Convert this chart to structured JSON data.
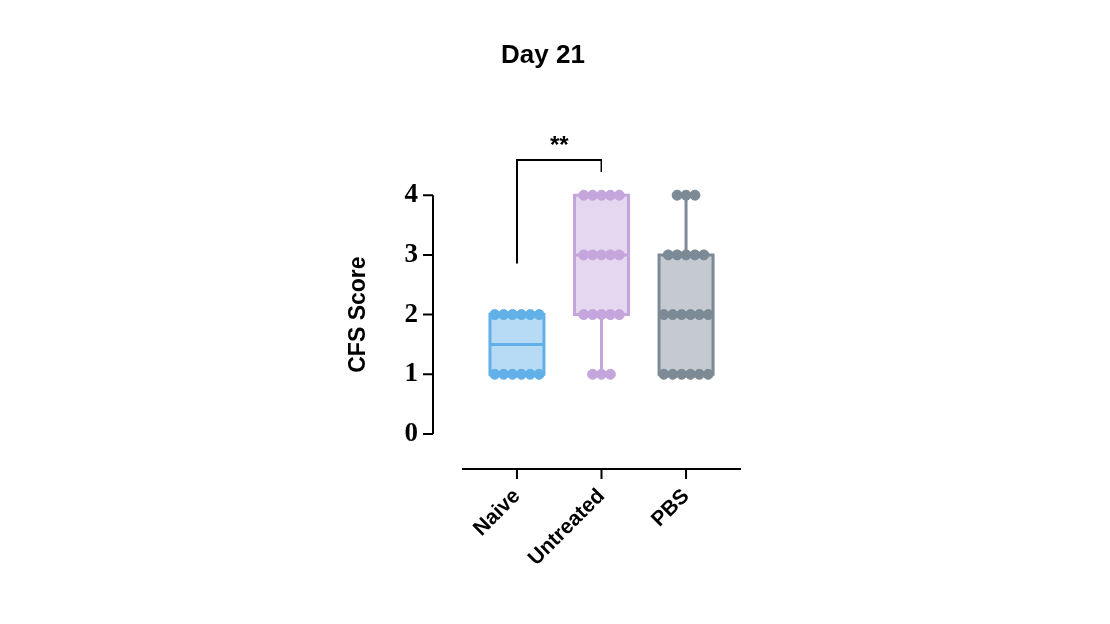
{
  "chart_data": {
    "type": "box",
    "title": "Day 21",
    "ylabel": "CFS Score",
    "categories": [
      "Naive",
      "Untreated",
      "PBS"
    ],
    "colors": [
      "#62b0e8",
      "#c4a6dc",
      "#7c8a96"
    ],
    "boxes": [
      {
        "low": 1,
        "q1": 1,
        "median": 1.5,
        "q3": 2,
        "high": 2
      },
      {
        "low": 1,
        "q1": 2,
        "median": 3,
        "q3": 4,
        "high": 4
      },
      {
        "low": 1,
        "q1": 1,
        "median": 2,
        "q3": 3,
        "high": 4
      }
    ],
    "series": [
      {
        "type": "scatter",
        "color": "#62b0e8",
        "x": [
          "Naive",
          "Naive",
          "Naive",
          "Naive",
          "Naive",
          "Naive",
          "Naive",
          "Naive",
          "Naive",
          "Naive",
          "Naive",
          "Naive"
        ],
        "values": [
          1,
          1,
          1,
          1,
          1,
          1,
          2,
          2,
          2,
          2,
          2,
          2
        ]
      },
      {
        "type": "scatter",
        "color": "#c4a6dc",
        "x": [
          "Untreated",
          "Untreated",
          "Untreated",
          "Untreated",
          "Untreated",
          "Untreated",
          "Untreated",
          "Untreated",
          "Untreated",
          "Untreated",
          "Untreated",
          "Untreated",
          "Untreated",
          "Untreated",
          "Untreated",
          "Untreated",
          "Untreated",
          "Untreated"
        ],
        "values": [
          1,
          1,
          1,
          2,
          2,
          2,
          2,
          2,
          3,
          3,
          3,
          3,
          3,
          4,
          4,
          4,
          4,
          4
        ]
      },
      {
        "type": "scatter",
        "color": "#7c8a96",
        "x": [
          "PBS",
          "PBS",
          "PBS",
          "PBS",
          "PBS",
          "PBS",
          "PBS",
          "PBS",
          "PBS",
          "PBS",
          "PBS",
          "PBS",
          "PBS",
          "PBS",
          "PBS",
          "PBS",
          "PBS",
          "PBS",
          "PBS",
          "PBS"
        ],
        "values": [
          1,
          1,
          1,
          1,
          1,
          1,
          2,
          2,
          2,
          2,
          2,
          2,
          3,
          3,
          3,
          3,
          3,
          4,
          4,
          4
        ]
      }
    ],
    "ylim": [
      0,
      4
    ],
    "yticks": [
      0,
      1,
      2,
      3,
      4
    ],
    "marker": "circle",
    "grid": false,
    "legend": false,
    "annotations": [
      "**"
    ]
  }
}
